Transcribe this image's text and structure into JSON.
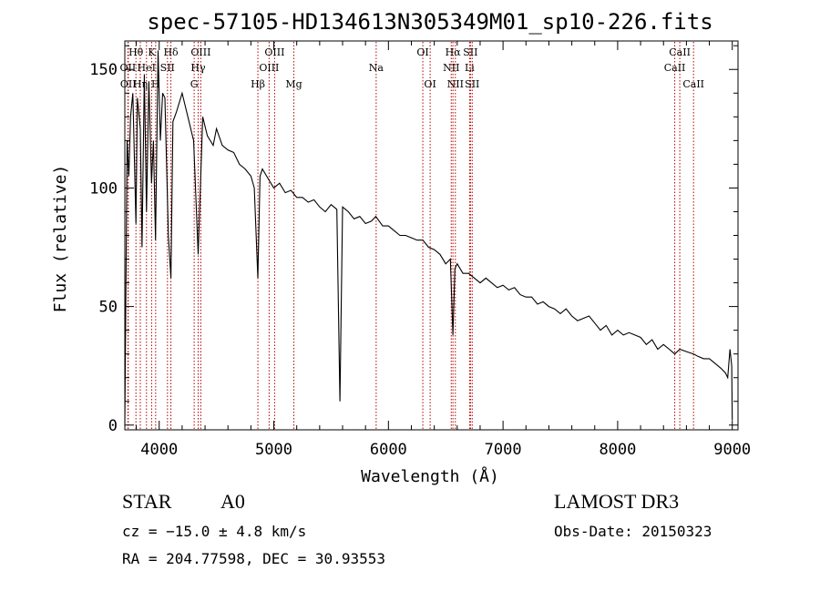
{
  "chart_data": {
    "type": "line",
    "title": "spec-57105-HD134613N305349M01_sp10-226.fits",
    "xlabel": "Wavelength (Å)",
    "ylabel": "Flux (relative)",
    "xlim": [
      3700,
      9050
    ],
    "ylim": [
      -2,
      162
    ],
    "xticks": [
      4000,
      5000,
      6000,
      7000,
      8000,
      9000
    ],
    "xtick_labels": [
      "4000",
      "5000",
      "6000",
      "7000",
      "8000",
      "9000"
    ],
    "yticks": [
      0,
      50,
      100,
      150
    ],
    "ytick_labels": [
      "0",
      "50",
      "100",
      "150"
    ],
    "grid": false,
    "series": [
      {
        "name": "flux",
        "x": [
          3700,
          3720,
          3735,
          3750,
          3770,
          3797,
          3810,
          3835,
          3850,
          3870,
          3889,
          3910,
          3933,
          3950,
          3968,
          3990,
          4010,
          4030,
          4050,
          4080,
          4102,
          4120,
          4150,
          4200,
          4250,
          4300,
          4340,
          4380,
          4420,
          4471,
          4500,
          4550,
          4600,
          4650,
          4700,
          4750,
          4800,
          4830,
          4861,
          4880,
          4900,
          4950,
          5000,
          5050,
          5100,
          5150,
          5200,
          5250,
          5300,
          5350,
          5400,
          5450,
          5500,
          5550,
          5577,
          5600,
          5650,
          5700,
          5750,
          5800,
          5850,
          5890,
          5950,
          6000,
          6050,
          6100,
          6150,
          6200,
          6250,
          6300,
          6350,
          6400,
          6450,
          6500,
          6540,
          6563,
          6580,
          6600,
          6650,
          6700,
          6750,
          6800,
          6850,
          6900,
          6950,
          7000,
          7050,
          7100,
          7150,
          7200,
          7250,
          7300,
          7350,
          7400,
          7450,
          7500,
          7550,
          7600,
          7650,
          7700,
          7750,
          7800,
          7850,
          7900,
          7950,
          8000,
          8050,
          8100,
          8150,
          8200,
          8250,
          8300,
          8350,
          8400,
          8450,
          8498,
          8542,
          8600,
          8662,
          8700,
          8750,
          8800,
          8850,
          8900,
          8940,
          8960,
          8980,
          8995,
          9000
        ],
        "y": [
          0,
          120,
          105,
          130,
          140,
          85,
          138,
          125,
          75,
          148,
          90,
          145,
          102,
          120,
          78,
          158,
          120,
          140,
          138,
          80,
          62,
          128,
          132,
          140,
          130,
          120,
          72,
          130,
          122,
          118,
          125,
          118,
          116,
          115,
          110,
          108,
          105,
          100,
          62,
          105,
          108,
          104,
          100,
          102,
          98,
          99,
          96,
          96,
          94,
          95,
          92,
          90,
          93,
          91,
          10,
          92,
          90,
          87,
          88,
          85,
          86,
          88,
          84,
          84,
          82,
          80,
          80,
          79,
          78,
          78,
          75,
          74,
          72,
          68,
          70,
          38,
          66,
          68,
          64,
          64,
          62,
          60,
          62,
          60,
          58,
          59,
          57,
          58,
          55,
          54,
          54,
          51,
          52,
          50,
          49,
          47,
          49,
          46,
          44,
          45,
          46,
          43,
          40,
          42,
          38,
          40,
          38,
          39,
          38,
          37,
          34,
          36,
          32,
          34,
          32,
          30,
          32,
          31,
          30,
          29,
          28,
          28,
          26,
          24,
          22,
          20,
          32,
          25,
          2
        ]
      }
    ],
    "spectral_lines": [
      {
        "label": "Hθ",
        "wavelength": 3797,
        "row": 0
      },
      {
        "label": "OII",
        "wavelength": 3727,
        "row": 1
      },
      {
        "label": "OII",
        "wavelength": 3730,
        "row": 2
      },
      {
        "label": "Hη",
        "wavelength": 3835,
        "row": 2
      },
      {
        "label": "HeI",
        "wavelength": 3889,
        "row": 1
      },
      {
        "label": "K",
        "wavelength": 3934,
        "row": 0
      },
      {
        "label": "H",
        "wavelength": 3969,
        "row": 2
      },
      {
        "label": "SII",
        "wavelength": 4072,
        "row": 1
      },
      {
        "label": "Hδ",
        "wavelength": 4102,
        "row": 0
      },
      {
        "label": "OIII",
        "wavelength": 4363,
        "row": 0
      },
      {
        "label": "Hγ",
        "wavelength": 4340,
        "row": 1
      },
      {
        "label": "G",
        "wavelength": 4305,
        "row": 2
      },
      {
        "label": "Hβ",
        "wavelength": 4861,
        "row": 2
      },
      {
        "label": "OIII",
        "wavelength": 5007,
        "row": 0
      },
      {
        "label": "OIII",
        "wavelength": 4959,
        "row": 1
      },
      {
        "label": "Mg",
        "wavelength": 5175,
        "row": 2
      },
      {
        "label": "Na",
        "wavelength": 5893,
        "row": 1
      },
      {
        "label": "OI",
        "wavelength": 6300,
        "row": 0
      },
      {
        "label": "OI",
        "wavelength": 6364,
        "row": 2
      },
      {
        "label": "Hα",
        "wavelength": 6563,
        "row": 0
      },
      {
        "label": "SII",
        "wavelength": 6716,
        "row": 0
      },
      {
        "label": "NII",
        "wavelength": 6548,
        "row": 1
      },
      {
        "label": "Li",
        "wavelength": 6708,
        "row": 1
      },
      {
        "label": "NII",
        "wavelength": 6584,
        "row": 2
      },
      {
        "label": "SII",
        "wavelength": 6731,
        "row": 2
      },
      {
        "label": "CaII",
        "wavelength": 8542,
        "row": 0
      },
      {
        "label": "CaII",
        "wavelength": 8498,
        "row": 1
      },
      {
        "label": "CaII",
        "wavelength": 8662,
        "row": 2
      }
    ]
  },
  "info": {
    "object_class": "STAR",
    "subclass": "A0",
    "survey": "LAMOST DR3",
    "cz": "cz = −15.0 ± 4.8 km/s",
    "obs_date": "Obs-Date: 20150323",
    "coords": "RA = 204.77598, DEC =  30.93553"
  },
  "colors": {
    "line": "#000000",
    "marker": "#b40000",
    "axis": "#000000"
  }
}
